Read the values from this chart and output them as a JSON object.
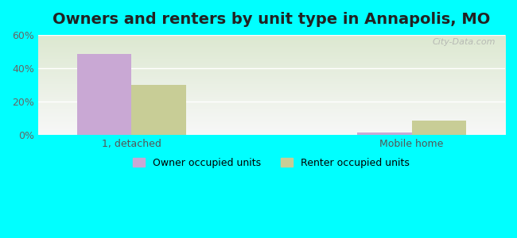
{
  "title": "Owners and renters by unit type in Annapolis, MO",
  "categories": [
    "1, detached",
    "Mobile home"
  ],
  "owner_values": [
    48.5,
    1.5
  ],
  "renter_values": [
    30.0,
    8.5
  ],
  "owner_color": "#c9a8d4",
  "renter_color": "#c8cd96",
  "ylim": [
    0,
    0.6
  ],
  "yticks": [
    0.0,
    0.2,
    0.4,
    0.6
  ],
  "ytick_labels": [
    "0%",
    "20%",
    "40%",
    "60%"
  ],
  "bar_width": 0.35,
  "bg_top_color": "#dce8d0",
  "bg_bottom_color": "#f8f8f8",
  "outer_bg": "#00ffff",
  "title_fontsize": 14,
  "legend_labels": [
    "Owner occupied units",
    "Renter occupied units"
  ],
  "watermark": "City-Data.com",
  "x_positions": [
    0.0,
    1.8
  ],
  "xlim": [
    -0.6,
    2.4
  ]
}
